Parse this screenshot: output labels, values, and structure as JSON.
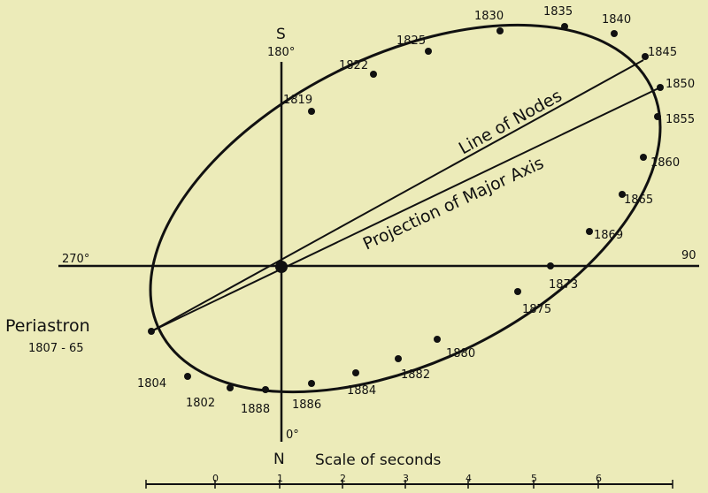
{
  "compass": {
    "south": "S",
    "north": "N",
    "deg_top": "180°",
    "deg_bottom": "0°",
    "deg_left": "270°",
    "deg_right": "90"
  },
  "labels": {
    "line_of_nodes": "Line of Nodes",
    "major_axis": "Projection of Major Axis",
    "periastron": "Periastron",
    "periastron_years": "1807 - 65"
  },
  "orbit_years": [
    "1804",
    "1802",
    "1888",
    "1886",
    "1884",
    "1882",
    "1880",
    "1875",
    "1873",
    "1869",
    "1865",
    "1860",
    "1855",
    "1850",
    "1845",
    "1840",
    "1835",
    "1830",
    "1825",
    "1822",
    "1819"
  ],
  "scale": {
    "title": "Scale of seconds",
    "ticks": [
      "0",
      "1",
      "2",
      "3",
      "4",
      "5",
      "6"
    ]
  }
}
